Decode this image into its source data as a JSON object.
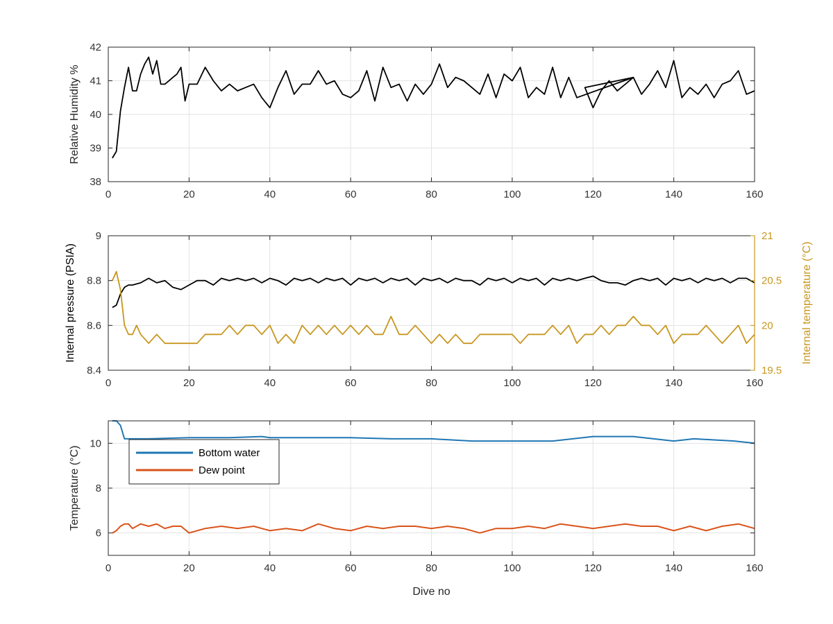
{
  "chart_data": [
    {
      "type": "line",
      "ylabel": "Relative Humidity %",
      "xlabel": "",
      "xlim": [
        0,
        160
      ],
      "ylim": [
        38,
        42
      ],
      "xticks": [
        0,
        20,
        40,
        60,
        80,
        100,
        120,
        140,
        160
      ],
      "yticks": [
        38,
        39,
        40,
        41,
        42
      ],
      "grid": true,
      "series": [
        {
          "color": "#000000",
          "x": [
            1,
            2,
            3,
            4,
            5,
            6,
            7,
            8,
            9,
            10,
            11,
            12,
            13,
            14,
            15,
            16,
            17,
            18,
            19,
            20,
            22,
            24,
            26,
            28,
            30,
            32,
            34,
            36,
            38,
            40,
            42,
            44,
            46,
            48,
            50,
            52,
            54,
            56,
            58,
            60,
            62,
            64,
            66,
            68,
            70,
            72,
            74,
            76,
            78,
            80,
            82,
            84,
            86,
            88,
            90,
            92,
            94,
            96,
            98,
            100,
            102,
            104,
            106,
            108,
            110,
            112,
            114,
            116,
            130,
            118,
            120,
            122,
            124,
            126,
            128,
            130,
            132,
            134,
            136,
            138,
            140,
            142,
            144,
            146,
            148,
            150,
            152,
            154,
            156,
            158,
            160
          ],
          "y": [
            38.7,
            38.9,
            40.1,
            40.8,
            41.4,
            40.7,
            40.7,
            41.2,
            41.5,
            41.7,
            41.2,
            41.6,
            40.9,
            40.9,
            41.0,
            41.1,
            41.2,
            41.4,
            40.4,
            40.9,
            40.9,
            41.4,
            41.0,
            40.7,
            40.9,
            40.7,
            40.8,
            40.9,
            40.5,
            40.2,
            40.8,
            41.3,
            40.6,
            40.9,
            40.9,
            41.3,
            40.9,
            41.0,
            40.6,
            40.5,
            40.7,
            41.3,
            40.4,
            41.4,
            40.8,
            40.9,
            40.4,
            40.9,
            40.6,
            40.9,
            41.5,
            40.8,
            41.1,
            41.0,
            40.8,
            40.6,
            41.2,
            40.5,
            41.2,
            41.0,
            41.4,
            40.5,
            40.8,
            40.6,
            41.4,
            40.5,
            41.1,
            40.5,
            41.1,
            40.8,
            40.2,
            40.7,
            41.0,
            40.7,
            40.9,
            41.1,
            40.6,
            40.9,
            41.3,
            40.8,
            41.6,
            40.5,
            40.8,
            40.6,
            40.9,
            40.5,
            40.9,
            41.0,
            41.3,
            40.6,
            40.7
          ]
        }
      ]
    },
    {
      "type": "line",
      "ylabel": "Internal pressure (PSIA)",
      "y2label": "Internal temperature (°C)",
      "xlabel": "",
      "xlim": [
        0,
        160
      ],
      "ylim": [
        8.4,
        9
      ],
      "y2lim": [
        19.5,
        21
      ],
      "xticks": [
        0,
        20,
        40,
        60,
        80,
        100,
        120,
        140,
        160
      ],
      "yticks": [
        8.4,
        8.6,
        8.8,
        9
      ],
      "y2ticks": [
        19.5,
        20,
        20.5,
        21
      ],
      "y2color": "#c8961e",
      "grid": true,
      "series": [
        {
          "axis": "left",
          "color": "#000000",
          "x": [
            1,
            2,
            3,
            4,
            5,
            6,
            8,
            10,
            12,
            14,
            16,
            18,
            20,
            22,
            24,
            26,
            28,
            30,
            32,
            34,
            36,
            38,
            40,
            42,
            44,
            46,
            48,
            50,
            52,
            54,
            56,
            58,
            60,
            62,
            64,
            66,
            68,
            70,
            72,
            74,
            76,
            78,
            80,
            82,
            84,
            86,
            88,
            90,
            92,
            94,
            96,
            98,
            100,
            102,
            104,
            106,
            108,
            110,
            112,
            114,
            116,
            118,
            120,
            122,
            124,
            126,
            128,
            130,
            132,
            134,
            136,
            138,
            140,
            142,
            144,
            146,
            148,
            150,
            152,
            154,
            156,
            158,
            160
          ],
          "y": [
            8.68,
            8.69,
            8.74,
            8.77,
            8.78,
            8.78,
            8.79,
            8.81,
            8.79,
            8.8,
            8.77,
            8.76,
            8.78,
            8.8,
            8.8,
            8.78,
            8.81,
            8.8,
            8.81,
            8.8,
            8.81,
            8.79,
            8.81,
            8.8,
            8.78,
            8.81,
            8.8,
            8.81,
            8.79,
            8.81,
            8.8,
            8.81,
            8.78,
            8.81,
            8.8,
            8.81,
            8.79,
            8.81,
            8.8,
            8.81,
            8.78,
            8.81,
            8.8,
            8.81,
            8.79,
            8.81,
            8.8,
            8.8,
            8.78,
            8.81,
            8.8,
            8.81,
            8.79,
            8.81,
            8.8,
            8.81,
            8.78,
            8.81,
            8.8,
            8.81,
            8.8,
            8.81,
            8.82,
            8.8,
            8.79,
            8.79,
            8.78,
            8.8,
            8.81,
            8.8,
            8.81,
            8.78,
            8.81,
            8.8,
            8.81,
            8.79,
            8.81,
            8.8,
            8.81,
            8.79,
            8.81,
            8.81,
            8.79
          ]
        },
        {
          "axis": "right",
          "color": "#c8961e",
          "x": [
            1,
            2,
            3,
            4,
            5,
            6,
            7,
            8,
            9,
            10,
            12,
            14,
            16,
            18,
            20,
            22,
            24,
            26,
            28,
            30,
            32,
            34,
            36,
            38,
            40,
            42,
            44,
            46,
            48,
            50,
            52,
            54,
            56,
            58,
            60,
            62,
            64,
            66,
            68,
            70,
            72,
            74,
            76,
            78,
            80,
            82,
            84,
            86,
            88,
            90,
            92,
            94,
            96,
            98,
            100,
            102,
            104,
            106,
            108,
            110,
            112,
            114,
            116,
            118,
            120,
            122,
            124,
            126,
            128,
            130,
            132,
            134,
            136,
            138,
            140,
            142,
            144,
            146,
            148,
            150,
            152,
            154,
            156,
            158,
            160
          ],
          "y": [
            20.5,
            20.6,
            20.4,
            20.0,
            19.9,
            19.9,
            20.0,
            19.9,
            19.85,
            19.8,
            19.9,
            19.8,
            19.8,
            19.8,
            19.8,
            19.8,
            19.9,
            19.9,
            19.9,
            20.0,
            19.9,
            20.0,
            20.0,
            19.9,
            20.0,
            19.8,
            19.9,
            19.8,
            20.0,
            19.9,
            20.0,
            19.9,
            20.0,
            19.9,
            20.0,
            19.9,
            20.0,
            19.9,
            19.9,
            20.1,
            19.9,
            19.9,
            20.0,
            19.9,
            19.8,
            19.9,
            19.8,
            19.9,
            19.8,
            19.8,
            19.9,
            19.9,
            19.9,
            19.9,
            19.9,
            19.8,
            19.9,
            19.9,
            19.9,
            20.0,
            19.9,
            20.0,
            19.8,
            19.9,
            19.9,
            20.0,
            19.9,
            20.0,
            20.0,
            20.1,
            20.0,
            20.0,
            19.9,
            20.0,
            19.8,
            19.9,
            19.9,
            19.9,
            20.0,
            19.9,
            19.8,
            19.9,
            20.0,
            19.8,
            19.9
          ]
        }
      ]
    },
    {
      "type": "line",
      "ylabel": "Temperature (°C)",
      "xlabel": "Dive no",
      "xlim": [
        0,
        160
      ],
      "ylim": [
        5,
        11
      ],
      "xticks": [
        0,
        20,
        40,
        60,
        80,
        100,
        120,
        140,
        160
      ],
      "yticks": [
        6,
        8,
        10
      ],
      "grid": true,
      "legend": "top-left",
      "series": [
        {
          "name": "Bottom water",
          "color": "#1f77b4",
          "x": [
            1,
            2,
            3,
            4,
            6,
            10,
            20,
            30,
            38,
            40,
            50,
            60,
            70,
            80,
            90,
            100,
            110,
            115,
            120,
            125,
            130,
            135,
            140,
            145,
            150,
            155,
            160
          ],
          "y": [
            11.0,
            11.0,
            10.8,
            10.2,
            10.2,
            10.2,
            10.25,
            10.25,
            10.3,
            10.25,
            10.25,
            10.25,
            10.2,
            10.2,
            10.1,
            10.1,
            10.1,
            10.2,
            10.3,
            10.3,
            10.3,
            10.2,
            10.1,
            10.2,
            10.15,
            10.1,
            10.0
          ]
        },
        {
          "name": "Dew point",
          "color": "#d95319",
          "x": [
            1,
            2,
            3,
            4,
            5,
            6,
            8,
            10,
            12,
            14,
            16,
            18,
            20,
            24,
            28,
            32,
            36,
            40,
            44,
            48,
            52,
            56,
            60,
            64,
            68,
            72,
            76,
            80,
            84,
            88,
            92,
            96,
            100,
            104,
            108,
            112,
            116,
            120,
            124,
            128,
            132,
            136,
            140,
            144,
            148,
            152,
            156,
            160
          ],
          "y": [
            6.0,
            6.1,
            6.3,
            6.4,
            6.4,
            6.2,
            6.4,
            6.3,
            6.4,
            6.2,
            6.3,
            6.3,
            6.0,
            6.2,
            6.3,
            6.2,
            6.3,
            6.1,
            6.2,
            6.1,
            6.4,
            6.2,
            6.1,
            6.3,
            6.2,
            6.3,
            6.3,
            6.2,
            6.3,
            6.2,
            6.0,
            6.2,
            6.2,
            6.3,
            6.2,
            6.4,
            6.3,
            6.2,
            6.3,
            6.4,
            6.3,
            6.3,
            6.1,
            6.3,
            6.1,
            6.3,
            6.4,
            6.2
          ]
        }
      ]
    }
  ]
}
